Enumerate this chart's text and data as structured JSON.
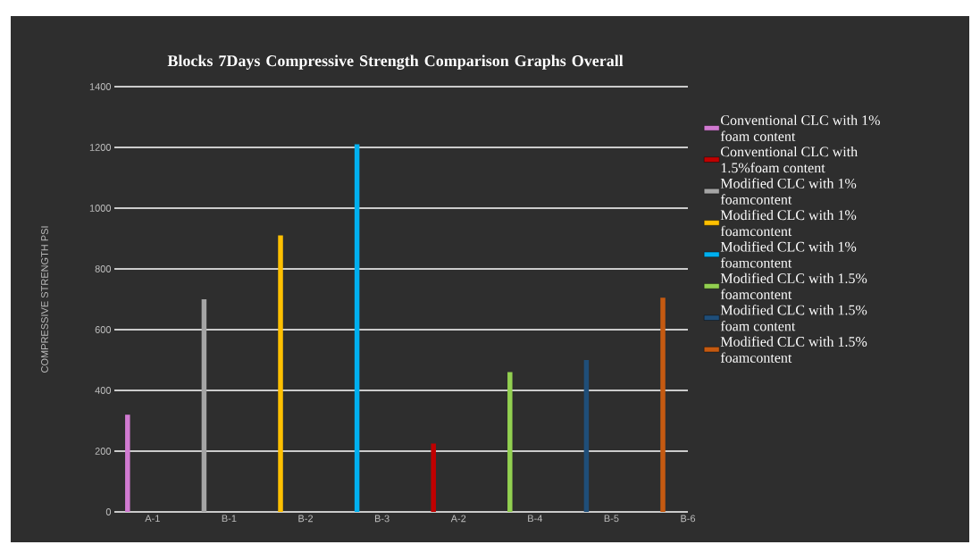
{
  "chart_data": {
    "type": "bar",
    "title": "Blocks 7Days Compressive Strength Comparison Graphs Overall",
    "ylabel": "COMPRESSIVE STRENGTH PSI",
    "categories": [
      "A-1",
      "B-1",
      "B-2",
      "B-3",
      "A-2",
      "B-4",
      "B-5",
      "B-6"
    ],
    "series": [
      {
        "name": "Conventional CLC with 1% foam content",
        "color": "#d17ad1",
        "values": [
          320,
          null,
          null,
          null,
          null,
          null,
          null,
          null
        ]
      },
      {
        "name": "Conventional CLC with 1.5%foam content",
        "color": "#c00000",
        "values": [
          null,
          null,
          null,
          null,
          225,
          null,
          null,
          null
        ]
      },
      {
        "name": "Modified CLC with 1% foamcontent",
        "color": "#a5a5a5",
        "values": [
          null,
          700,
          null,
          null,
          null,
          null,
          null,
          null
        ]
      },
      {
        "name": "Modified CLC with 1% foamcontent",
        "color": "#ffc000",
        "values": [
          null,
          null,
          910,
          null,
          null,
          null,
          null,
          null
        ]
      },
      {
        "name": "Modified CLC with 1% foamcontent",
        "color": "#00b0f0",
        "values": [
          null,
          null,
          null,
          1210,
          null,
          null,
          null,
          null
        ]
      },
      {
        "name": "Modified CLC with 1.5% foamcontent",
        "color": "#92d050",
        "values": [
          null,
          null,
          null,
          null,
          null,
          460,
          null,
          null
        ]
      },
      {
        "name": "Modified CLC with 1.5% foam content",
        "color": "#1f4e79",
        "values": [
          null,
          null,
          null,
          null,
          null,
          null,
          500,
          null
        ]
      },
      {
        "name": "Modified CLC with 1.5% foamcontent",
        "color": "#c55a11",
        "values": [
          null,
          null,
          null,
          null,
          null,
          null,
          null,
          705
        ]
      }
    ],
    "ylim": [
      0,
      1400
    ],
    "yticks": [
      0,
      200,
      400,
      600,
      800,
      1000,
      1200,
      1400
    ],
    "grid": "y",
    "legend": "right"
  }
}
